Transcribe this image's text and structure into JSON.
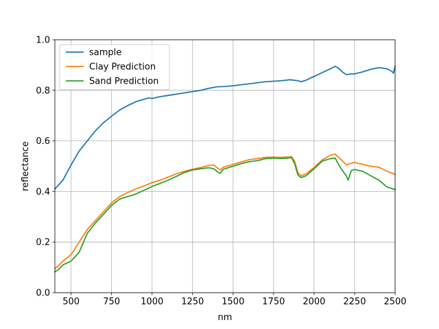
{
  "chart_data": {
    "type": "line",
    "title": "",
    "xlabel": "nm",
    "ylabel": "reflectance",
    "xlim": [
      400,
      2500
    ],
    "ylim": [
      0.0,
      1.0
    ],
    "grid": true,
    "legend_position": "top-left",
    "xticks": [
      500,
      750,
      1000,
      1250,
      1500,
      1750,
      2000,
      2250,
      2500
    ],
    "xtick_labels": [
      "500",
      "750",
      "1000",
      "1250",
      "1500",
      "1750",
      "2000",
      "2250",
      "2500"
    ],
    "yticks": [
      0.0,
      0.2,
      0.4,
      0.6,
      0.8,
      1.0
    ],
    "ytick_labels": [
      "0.0",
      "0.2",
      "0.4",
      "0.6",
      "0.8",
      "1.0"
    ],
    "series": [
      {
        "name": "sample",
        "color": "#1f77b4",
        "points": [
          [
            400,
            0.41
          ],
          [
            450,
            0.445
          ],
          [
            500,
            0.505
          ],
          [
            550,
            0.56
          ],
          [
            600,
            0.6
          ],
          [
            650,
            0.64
          ],
          [
            700,
            0.672
          ],
          [
            750,
            0.698
          ],
          [
            800,
            0.722
          ],
          [
            850,
            0.74
          ],
          [
            900,
            0.755
          ],
          [
            950,
            0.765
          ],
          [
            980,
            0.77
          ],
          [
            1000,
            0.768
          ],
          [
            1050,
            0.775
          ],
          [
            1100,
            0.78
          ],
          [
            1200,
            0.79
          ],
          [
            1300,
            0.8
          ],
          [
            1350,
            0.808
          ],
          [
            1400,
            0.814
          ],
          [
            1450,
            0.815
          ],
          [
            1500,
            0.818
          ],
          [
            1600,
            0.826
          ],
          [
            1700,
            0.834
          ],
          [
            1750,
            0.836
          ],
          [
            1800,
            0.838
          ],
          [
            1850,
            0.842
          ],
          [
            1900,
            0.838
          ],
          [
            1920,
            0.834
          ],
          [
            1950,
            0.84
          ],
          [
            2000,
            0.855
          ],
          [
            2050,
            0.87
          ],
          [
            2100,
            0.885
          ],
          [
            2130,
            0.895
          ],
          [
            2150,
            0.888
          ],
          [
            2180,
            0.87
          ],
          [
            2200,
            0.862
          ],
          [
            2230,
            0.865
          ],
          [
            2250,
            0.865
          ],
          [
            2300,
            0.873
          ],
          [
            2350,
            0.883
          ],
          [
            2400,
            0.89
          ],
          [
            2450,
            0.885
          ],
          [
            2480,
            0.875
          ],
          [
            2490,
            0.868
          ],
          [
            2500,
            0.895
          ]
        ]
      },
      {
        "name": "Clay Prediction",
        "color": "#ff7f0e",
        "points": [
          [
            400,
            0.095
          ],
          [
            420,
            0.105
          ],
          [
            450,
            0.125
          ],
          [
            500,
            0.15
          ],
          [
            550,
            0.2
          ],
          [
            600,
            0.25
          ],
          [
            650,
            0.285
          ],
          [
            700,
            0.32
          ],
          [
            750,
            0.355
          ],
          [
            800,
            0.38
          ],
          [
            850,
            0.396
          ],
          [
            900,
            0.41
          ],
          [
            950,
            0.422
          ],
          [
            1000,
            0.435
          ],
          [
            1050,
            0.445
          ],
          [
            1100,
            0.457
          ],
          [
            1150,
            0.47
          ],
          [
            1200,
            0.48
          ],
          [
            1250,
            0.488
          ],
          [
            1300,
            0.495
          ],
          [
            1350,
            0.503
          ],
          [
            1380,
            0.505
          ],
          [
            1410,
            0.49
          ],
          [
            1420,
            0.485
          ],
          [
            1440,
            0.496
          ],
          [
            1500,
            0.507
          ],
          [
            1550,
            0.517
          ],
          [
            1600,
            0.526
          ],
          [
            1650,
            0.53
          ],
          [
            1700,
            0.535
          ],
          [
            1750,
            0.536
          ],
          [
            1800,
            0.535
          ],
          [
            1840,
            0.537
          ],
          [
            1860,
            0.538
          ],
          [
            1880,
            0.52
          ],
          [
            1900,
            0.475
          ],
          [
            1920,
            0.462
          ],
          [
            1950,
            0.47
          ],
          [
            2000,
            0.495
          ],
          [
            2050,
            0.525
          ],
          [
            2100,
            0.543
          ],
          [
            2130,
            0.548
          ],
          [
            2160,
            0.53
          ],
          [
            2200,
            0.505
          ],
          [
            2220,
            0.51
          ],
          [
            2250,
            0.515
          ],
          [
            2300,
            0.507
          ],
          [
            2350,
            0.5
          ],
          [
            2400,
            0.496
          ],
          [
            2450,
            0.48
          ],
          [
            2500,
            0.468
          ]
        ]
      },
      {
        "name": "Sand Prediction",
        "color": "#2ca02c",
        "points": [
          [
            400,
            0.082
          ],
          [
            420,
            0.09
          ],
          [
            450,
            0.11
          ],
          [
            500,
            0.125
          ],
          [
            550,
            0.16
          ],
          [
            600,
            0.235
          ],
          [
            650,
            0.275
          ],
          [
            700,
            0.31
          ],
          [
            750,
            0.345
          ],
          [
            800,
            0.37
          ],
          [
            850,
            0.38
          ],
          [
            900,
            0.39
          ],
          [
            950,
            0.405
          ],
          [
            1000,
            0.42
          ],
          [
            1050,
            0.432
          ],
          [
            1100,
            0.445
          ],
          [
            1150,
            0.46
          ],
          [
            1200,
            0.475
          ],
          [
            1250,
            0.485
          ],
          [
            1300,
            0.49
          ],
          [
            1350,
            0.494
          ],
          [
            1380,
            0.49
          ],
          [
            1410,
            0.475
          ],
          [
            1420,
            0.472
          ],
          [
            1440,
            0.488
          ],
          [
            1500,
            0.5
          ],
          [
            1550,
            0.51
          ],
          [
            1600,
            0.518
          ],
          [
            1650,
            0.522
          ],
          [
            1700,
            0.53
          ],
          [
            1750,
            0.532
          ],
          [
            1800,
            0.531
          ],
          [
            1840,
            0.532
          ],
          [
            1860,
            0.535
          ],
          [
            1880,
            0.51
          ],
          [
            1900,
            0.465
          ],
          [
            1920,
            0.455
          ],
          [
            1950,
            0.462
          ],
          [
            2000,
            0.49
          ],
          [
            2050,
            0.52
          ],
          [
            2100,
            0.53
          ],
          [
            2130,
            0.532
          ],
          [
            2160,
            0.497
          ],
          [
            2200,
            0.46
          ],
          [
            2210,
            0.445
          ],
          [
            2230,
            0.483
          ],
          [
            2250,
            0.487
          ],
          [
            2300,
            0.48
          ],
          [
            2350,
            0.462
          ],
          [
            2400,
            0.445
          ],
          [
            2450,
            0.418
          ],
          [
            2500,
            0.408
          ]
        ]
      }
    ]
  }
}
